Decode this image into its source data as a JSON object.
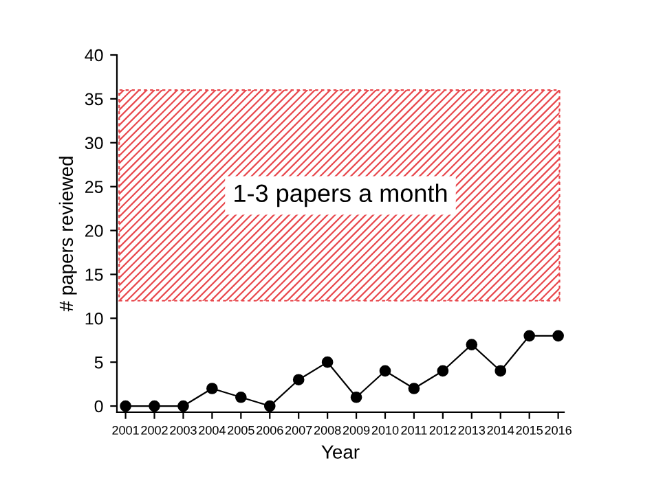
{
  "chart_data": {
    "type": "line",
    "xlabel": "Year",
    "ylabel": "# papers reviewed",
    "categories": [
      "2001",
      "2002",
      "2003",
      "2004",
      "2005",
      "2006",
      "2007",
      "2008",
      "2009",
      "2010",
      "2011",
      "2012",
      "2013",
      "2014",
      "2015",
      "2016"
    ],
    "series": [
      {
        "color": "#000000",
        "values": [
          0,
          0,
          0,
          2,
          1,
          0,
          3,
          5,
          1,
          4,
          2,
          4,
          7,
          4,
          8,
          8
        ]
      }
    ],
    "ylim": [
      -0.7,
      40
    ],
    "yticks": [
      0,
      5,
      10,
      15,
      20,
      25,
      30,
      35,
      40
    ],
    "bands": [
      {
        "axis": "y",
        "from": 12,
        "to": 36,
        "label": "1-3 papers a month",
        "color": "#e8474c"
      }
    ],
    "marker": "circle",
    "line_style": "solid",
    "grid": false,
    "legend": false
  }
}
